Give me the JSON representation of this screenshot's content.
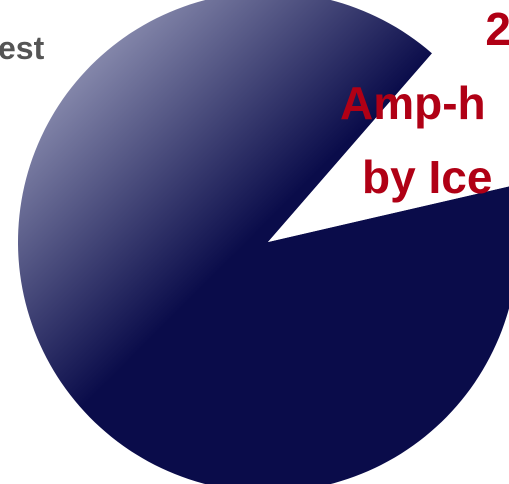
{
  "chart_data": {
    "type": "pie",
    "title": "",
    "slices": [
      {
        "label": "",
        "value": 90,
        "color": "#0a0c4a"
      },
      {
        "label": "",
        "value": 10,
        "color": "#ffffff"
      }
    ],
    "start_angle_deg": -13,
    "annotations": {
      "left_text": "est",
      "right_lines": [
        "2",
        "Amp-h",
        "by Ice"
      ]
    }
  },
  "colors": {
    "slice_dark": "#0a0c4a",
    "slice_light": "#a6a9c6",
    "annotation_red": "#b00015",
    "annotation_gray": "#555555"
  }
}
